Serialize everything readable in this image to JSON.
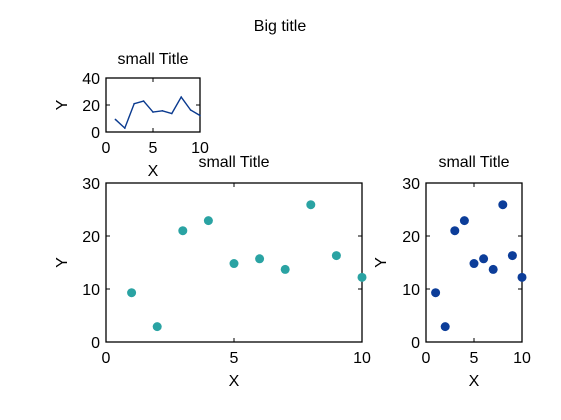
{
  "figure": {
    "suptitle": "Big title"
  },
  "chart_data": [
    {
      "type": "line",
      "title": "small Title",
      "xlabel": "X",
      "ylabel": "Y",
      "xlim": [
        0,
        10
      ],
      "ylim": [
        0,
        40
      ],
      "xticks": [
        0,
        5,
        10
      ],
      "yticks": [
        0,
        20,
        40
      ],
      "grid": false,
      "series": [
        {
          "x": [
            1,
            2,
            3,
            4,
            5,
            6,
            7,
            8,
            9,
            10
          ],
          "y": [
            9.3,
            2.9,
            21.0,
            22.9,
            14.8,
            15.7,
            13.7,
            25.9,
            16.3,
            12.2
          ],
          "color": "#0a3a8f"
        }
      ]
    },
    {
      "type": "scatter",
      "title": "small Title",
      "xlabel": "X",
      "ylabel": "Y",
      "xlim": [
        0,
        10
      ],
      "ylim": [
        0,
        30
      ],
      "xticks": [
        0,
        5,
        10
      ],
      "yticks": [
        0,
        10,
        20,
        30
      ],
      "grid": false,
      "series": [
        {
          "x": [
            1,
            2,
            3,
            4,
            5,
            6,
            7,
            8,
            9,
            10
          ],
          "y": [
            9.3,
            2.9,
            21.0,
            22.9,
            14.8,
            15.7,
            13.7,
            25.9,
            16.3,
            12.2
          ],
          "color": "#2aa3a3"
        }
      ]
    },
    {
      "type": "scatter",
      "title": "small Title",
      "xlabel": "X",
      "ylabel": "Y",
      "xlim": [
        0,
        10
      ],
      "ylim": [
        0,
        30
      ],
      "xticks": [
        0,
        5,
        10
      ],
      "yticks": [
        0,
        10,
        20,
        30
      ],
      "grid": false,
      "series": [
        {
          "x": [
            1,
            2,
            3,
            4,
            5,
            6,
            7,
            8,
            9,
            10
          ],
          "y": [
            9.3,
            2.9,
            21.0,
            22.9,
            14.8,
            15.7,
            13.7,
            25.9,
            16.3,
            12.2
          ],
          "color": "#0c3d99"
        }
      ]
    }
  ]
}
